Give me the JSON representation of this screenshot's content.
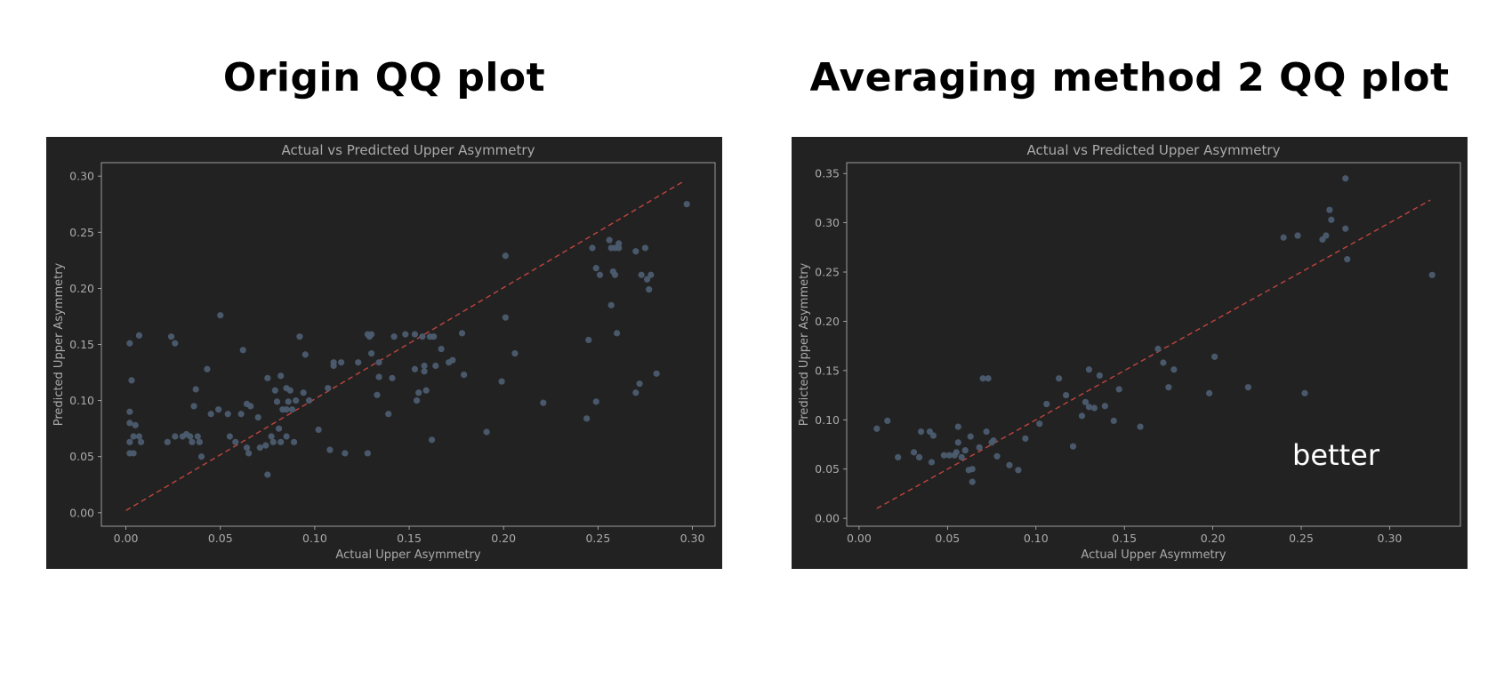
{
  "panels": {
    "left_title": "Origin QQ plot",
    "right_title": "Averaging method 2 QQ plot"
  },
  "colors": {
    "background": "#222222",
    "point": "#4c5d70",
    "fit_line": "#c0443e",
    "axis_text": "#aaaaaa",
    "frame": "#bbbbbb"
  },
  "chart_data": [
    {
      "type": "scatter",
      "title": "Actual vs Predicted Upper Asymmetry",
      "xlabel": "Actual Upper Asymmetry",
      "ylabel": "Predicted Upper Asymmetry",
      "xlim": [
        -0.013,
        0.312
      ],
      "ylim": [
        -0.012,
        0.312
      ],
      "xticks": [
        "0.00",
        "0.05",
        "0.10",
        "0.15",
        "0.20",
        "0.25",
        "0.30"
      ],
      "yticks": [
        "0.00",
        "0.05",
        "0.10",
        "0.15",
        "0.20",
        "0.25",
        "0.30"
      ],
      "grid": false,
      "reference_line": {
        "style": "dashed",
        "from": [
          0.0,
          0.002
        ],
        "to": [
          0.296,
          0.296
        ]
      },
      "points": [
        [
          0.002,
          0.151
        ],
        [
          0.003,
          0.118
        ],
        [
          0.007,
          0.158
        ],
        [
          0.002,
          0.09
        ],
        [
          0.002,
          0.08
        ],
        [
          0.005,
          0.078
        ],
        [
          0.004,
          0.068
        ],
        [
          0.002,
          0.063
        ],
        [
          0.007,
          0.068
        ],
        [
          0.008,
          0.063
        ],
        [
          0.002,
          0.053
        ],
        [
          0.004,
          0.053
        ],
        [
          0.022,
          0.063
        ],
        [
          0.024,
          0.157
        ],
        [
          0.026,
          0.151
        ],
        [
          0.026,
          0.068
        ],
        [
          0.03,
          0.068
        ],
        [
          0.032,
          0.07
        ],
        [
          0.034,
          0.068
        ],
        [
          0.035,
          0.063
        ],
        [
          0.036,
          0.095
        ],
        [
          0.037,
          0.11
        ],
        [
          0.038,
          0.068
        ],
        [
          0.039,
          0.063
        ],
        [
          0.04,
          0.05
        ],
        [
          0.043,
          0.128
        ],
        [
          0.045,
          0.088
        ],
        [
          0.049,
          0.092
        ],
        [
          0.05,
          0.176
        ],
        [
          0.054,
          0.088
        ],
        [
          0.055,
          0.068
        ],
        [
          0.058,
          0.063
        ],
        [
          0.061,
          0.088
        ],
        [
          0.062,
          0.145
        ],
        [
          0.064,
          0.097
        ],
        [
          0.064,
          0.058
        ],
        [
          0.065,
          0.053
        ],
        [
          0.066,
          0.095
        ],
        [
          0.07,
          0.085
        ],
        [
          0.071,
          0.058
        ],
        [
          0.074,
          0.06
        ],
        [
          0.075,
          0.12
        ],
        [
          0.075,
          0.034
        ],
        [
          0.077,
          0.068
        ],
        [
          0.078,
          0.063
        ],
        [
          0.079,
          0.109
        ],
        [
          0.08,
          0.099
        ],
        [
          0.081,
          0.075
        ],
        [
          0.082,
          0.063
        ],
        [
          0.082,
          0.122
        ],
        [
          0.083,
          0.092
        ],
        [
          0.085,
          0.111
        ],
        [
          0.085,
          0.092
        ],
        [
          0.085,
          0.068
        ],
        [
          0.086,
          0.099
        ],
        [
          0.087,
          0.109
        ],
        [
          0.088,
          0.092
        ],
        [
          0.089,
          0.063
        ],
        [
          0.09,
          0.1
        ],
        [
          0.092,
          0.157
        ],
        [
          0.094,
          0.107
        ],
        [
          0.095,
          0.141
        ],
        [
          0.097,
          0.1
        ],
        [
          0.102,
          0.074
        ],
        [
          0.107,
          0.111
        ],
        [
          0.108,
          0.056
        ],
        [
          0.11,
          0.131
        ],
        [
          0.11,
          0.134
        ],
        [
          0.114,
          0.134
        ],
        [
          0.116,
          0.053
        ],
        [
          0.123,
          0.134
        ],
        [
          0.128,
          0.159
        ],
        [
          0.128,
          0.053
        ],
        [
          0.129,
          0.157
        ],
        [
          0.13,
          0.159
        ],
        [
          0.13,
          0.142
        ],
        [
          0.133,
          0.105
        ],
        [
          0.134,
          0.134
        ],
        [
          0.134,
          0.121
        ],
        [
          0.139,
          0.088
        ],
        [
          0.141,
          0.12
        ],
        [
          0.142,
          0.157
        ],
        [
          0.148,
          0.159
        ],
        [
          0.153,
          0.159
        ],
        [
          0.153,
          0.128
        ],
        [
          0.154,
          0.1
        ],
        [
          0.155,
          0.107
        ],
        [
          0.157,
          0.157
        ],
        [
          0.158,
          0.131
        ],
        [
          0.158,
          0.126
        ],
        [
          0.159,
          0.109
        ],
        [
          0.161,
          0.157
        ],
        [
          0.162,
          0.065
        ],
        [
          0.163,
          0.157
        ],
        [
          0.164,
          0.131
        ],
        [
          0.167,
          0.146
        ],
        [
          0.171,
          0.134
        ],
        [
          0.173,
          0.136
        ],
        [
          0.178,
          0.16
        ],
        [
          0.179,
          0.123
        ],
        [
          0.191,
          0.072
        ],
        [
          0.199,
          0.117
        ],
        [
          0.201,
          0.229
        ],
        [
          0.201,
          0.174
        ],
        [
          0.206,
          0.142
        ],
        [
          0.221,
          0.098
        ],
        [
          0.244,
          0.084
        ],
        [
          0.245,
          0.154
        ],
        [
          0.247,
          0.236
        ],
        [
          0.249,
          0.099
        ],
        [
          0.249,
          0.218
        ],
        [
          0.251,
          0.212
        ],
        [
          0.256,
          0.243
        ],
        [
          0.257,
          0.185
        ],
        [
          0.257,
          0.236
        ],
        [
          0.258,
          0.215
        ],
        [
          0.259,
          0.212
        ],
        [
          0.259,
          0.236
        ],
        [
          0.26,
          0.16
        ],
        [
          0.261,
          0.24
        ],
        [
          0.261,
          0.236
        ],
        [
          0.27,
          0.107
        ],
        [
          0.27,
          0.233
        ],
        [
          0.272,
          0.115
        ],
        [
          0.273,
          0.212
        ],
        [
          0.275,
          0.236
        ],
        [
          0.276,
          0.208
        ],
        [
          0.277,
          0.199
        ],
        [
          0.278,
          0.212
        ],
        [
          0.281,
          0.124
        ],
        [
          0.297,
          0.275
        ]
      ]
    },
    {
      "type": "scatter",
      "title": "Actual vs Predicted Upper Asymmetry",
      "xlabel": "Actual Upper Asymmetry",
      "ylabel": "Predicted Upper Asymmetry",
      "xlim": [
        -0.007,
        0.34
      ],
      "ylim": [
        -0.008,
        0.361
      ],
      "xticks": [
        "0.00",
        "0.05",
        "0.10",
        "0.15",
        "0.20",
        "0.25",
        "0.30"
      ],
      "yticks": [
        "0.00",
        "0.05",
        "0.10",
        "0.15",
        "0.20",
        "0.25",
        "0.30",
        "0.35"
      ],
      "grid": false,
      "annotation": "better",
      "reference_line": {
        "style": "dashed",
        "from": [
          0.01,
          0.01
        ],
        "to": [
          0.323,
          0.323
        ]
      },
      "points": [
        [
          0.01,
          0.091
        ],
        [
          0.016,
          0.099
        ],
        [
          0.022,
          0.062
        ],
        [
          0.031,
          0.067
        ],
        [
          0.034,
          0.062
        ],
        [
          0.035,
          0.088
        ],
        [
          0.04,
          0.088
        ],
        [
          0.041,
          0.057
        ],
        [
          0.042,
          0.084
        ],
        [
          0.048,
          0.064
        ],
        [
          0.051,
          0.064
        ],
        [
          0.054,
          0.064
        ],
        [
          0.055,
          0.067
        ],
        [
          0.056,
          0.093
        ],
        [
          0.056,
          0.077
        ],
        [
          0.058,
          0.062
        ],
        [
          0.06,
          0.069
        ],
        [
          0.062,
          0.049
        ],
        [
          0.063,
          0.083
        ],
        [
          0.064,
          0.037
        ],
        [
          0.064,
          0.05
        ],
        [
          0.068,
          0.072
        ],
        [
          0.07,
          0.142
        ],
        [
          0.072,
          0.088
        ],
        [
          0.073,
          0.142
        ],
        [
          0.075,
          0.077
        ],
        [
          0.076,
          0.079
        ],
        [
          0.078,
          0.063
        ],
        [
          0.085,
          0.054
        ],
        [
          0.09,
          0.049
        ],
        [
          0.094,
          0.081
        ],
        [
          0.102,
          0.096
        ],
        [
          0.106,
          0.116
        ],
        [
          0.113,
          0.142
        ],
        [
          0.117,
          0.125
        ],
        [
          0.121,
          0.073
        ],
        [
          0.126,
          0.104
        ],
        [
          0.128,
          0.118
        ],
        [
          0.13,
          0.113
        ],
        [
          0.13,
          0.151
        ],
        [
          0.133,
          0.112
        ],
        [
          0.136,
          0.145
        ],
        [
          0.139,
          0.114
        ],
        [
          0.144,
          0.099
        ],
        [
          0.147,
          0.131
        ],
        [
          0.159,
          0.093
        ],
        [
          0.169,
          0.172
        ],
        [
          0.172,
          0.158
        ],
        [
          0.175,
          0.133
        ],
        [
          0.178,
          0.151
        ],
        [
          0.198,
          0.127
        ],
        [
          0.201,
          0.164
        ],
        [
          0.22,
          0.133
        ],
        [
          0.24,
          0.285
        ],
        [
          0.248,
          0.287
        ],
        [
          0.252,
          0.127
        ],
        [
          0.262,
          0.283
        ],
        [
          0.264,
          0.287
        ],
        [
          0.266,
          0.313
        ],
        [
          0.267,
          0.303
        ],
        [
          0.275,
          0.345
        ],
        [
          0.275,
          0.294
        ],
        [
          0.276,
          0.263
        ],
        [
          0.324,
          0.247
        ]
      ]
    }
  ]
}
